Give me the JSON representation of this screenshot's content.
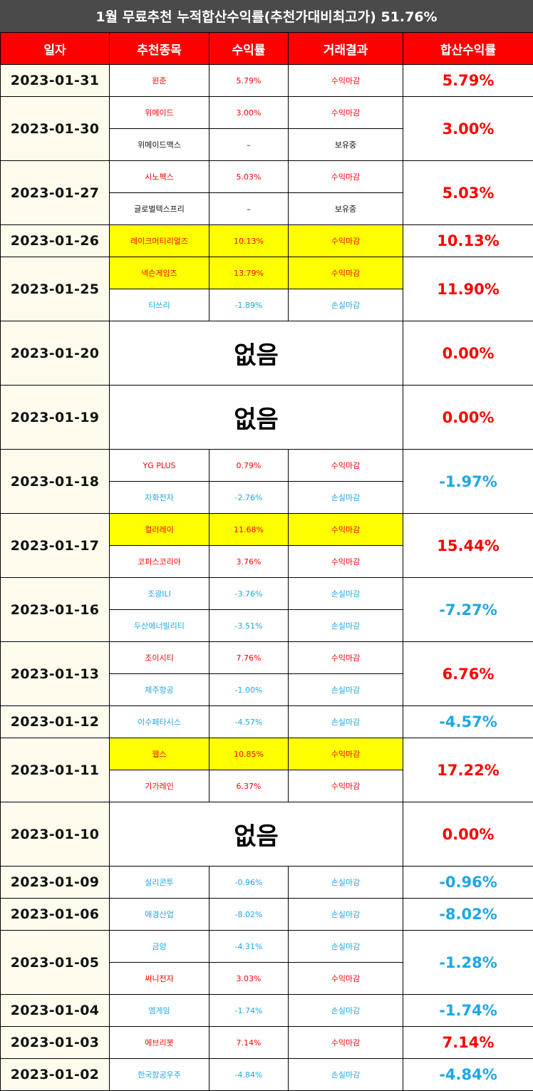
{
  "title": "1월 무료추천 누적합산수익률(추천가대비최고가) 51.76%",
  "headers": [
    "일자",
    "추천종목",
    "수익률",
    "거래결과",
    "합산수익률"
  ],
  "none_label": "없음",
  "colors": {
    "profit": "#ff0000",
    "loss": "#1ca7e6",
    "hold": "#111111",
    "highlight": "#ffff00",
    "header": "#ff0000",
    "title_bar": "#4a4a4a"
  },
  "rows": [
    {
      "date": "2023-01-31",
      "total": "5.79%",
      "total_color": "red",
      "items": [
        {
          "name": "윈준",
          "pct": "5.79%",
          "result": "수익마감",
          "color": "red",
          "hl": false
        }
      ]
    },
    {
      "date": "2023-01-30",
      "total": "3.00%",
      "total_color": "red",
      "items": [
        {
          "name": "위메이드",
          "pct": "3.00%",
          "result": "수익마감",
          "color": "red",
          "hl": false
        },
        {
          "name": "위메이드맥스",
          "pct": "–",
          "result": "보유중",
          "color": "black",
          "hl": false
        }
      ]
    },
    {
      "date": "2023-01-27",
      "total": "5.03%",
      "total_color": "red",
      "items": [
        {
          "name": "시노펙스",
          "pct": "5.03%",
          "result": "수익마감",
          "color": "red",
          "hl": false
        },
        {
          "name": "글로벌텍스프리",
          "pct": "–",
          "result": "보유중",
          "color": "black",
          "hl": false
        }
      ]
    },
    {
      "date": "2023-01-26",
      "total": "10.13%",
      "total_color": "red",
      "items": [
        {
          "name": "레이크머티리얼즈",
          "pct": "10.13%",
          "result": "수익마감",
          "color": "red",
          "hl": true
        }
      ]
    },
    {
      "date": "2023-01-25",
      "total": "11.90%",
      "total_color": "red",
      "items": [
        {
          "name": "넥슨게임즈",
          "pct": "13.79%",
          "result": "수익마감",
          "color": "red",
          "hl": true
        },
        {
          "name": "티쓰리",
          "pct": "-1.89%",
          "result": "손실마감",
          "color": "blue",
          "hl": false
        }
      ]
    },
    {
      "date": "2023-01-20",
      "total": "0.00%",
      "total_color": "red",
      "none": true,
      "items": []
    },
    {
      "date": "2023-01-19",
      "total": "0.00%",
      "total_color": "red",
      "none": true,
      "items": []
    },
    {
      "date": "2023-01-18",
      "total": "-1.97%",
      "total_color": "blue",
      "items": [
        {
          "name": "YG PLUS",
          "pct": "0.79%",
          "result": "수익마감",
          "color": "red",
          "hl": false
        },
        {
          "name": "자화전자",
          "pct": "-2.76%",
          "result": "손실마감",
          "color": "blue",
          "hl": false
        }
      ]
    },
    {
      "date": "2023-01-17",
      "total": "15.44%",
      "total_color": "red",
      "items": [
        {
          "name": "컬러레이",
          "pct": "11.68%",
          "result": "수익마감",
          "color": "red",
          "hl": true
        },
        {
          "name": "코퍼스코리아",
          "pct": "3.76%",
          "result": "수익마감",
          "color": "red",
          "hl": false
        }
      ]
    },
    {
      "date": "2023-01-16",
      "total": "-7.27%",
      "total_color": "blue",
      "items": [
        {
          "name": "조광ILI",
          "pct": "-3.76%",
          "result": "손실마감",
          "color": "blue",
          "hl": false
        },
        {
          "name": "두산에너빌리티",
          "pct": "-3.51%",
          "result": "손실마감",
          "color": "blue",
          "hl": false
        }
      ]
    },
    {
      "date": "2023-01-13",
      "total": "6.76%",
      "total_color": "red",
      "items": [
        {
          "name": "조이시티",
          "pct": "7.76%",
          "result": "수익마감",
          "color": "red",
          "hl": false
        },
        {
          "name": "제주항공",
          "pct": "-1.00%",
          "result": "손실마감",
          "color": "blue",
          "hl": false
        }
      ]
    },
    {
      "date": "2023-01-12",
      "total": "-4.57%",
      "total_color": "blue",
      "items": [
        {
          "name": "이수페타시스",
          "pct": "-4.57%",
          "result": "손실마감",
          "color": "blue",
          "hl": false
        }
      ]
    },
    {
      "date": "2023-01-11",
      "total": "17.22%",
      "total_color": "red",
      "items": [
        {
          "name": "웹스",
          "pct": "10.85%",
          "result": "수익마감",
          "color": "red",
          "hl": true
        },
        {
          "name": "기가레인",
          "pct": "6.37%",
          "result": "수익마감",
          "color": "red",
          "hl": false
        }
      ]
    },
    {
      "date": "2023-01-10",
      "total": "0.00%",
      "total_color": "red",
      "none": true,
      "items": []
    },
    {
      "date": "2023-01-09",
      "total": "-0.96%",
      "total_color": "blue",
      "items": [
        {
          "name": "실리콘투",
          "pct": "-0.96%",
          "result": "손실마감",
          "color": "blue",
          "hl": false
        }
      ]
    },
    {
      "date": "2023-01-06",
      "total": "-8.02%",
      "total_color": "blue",
      "items": [
        {
          "name": "애경산업",
          "pct": "-8.02%",
          "result": "손실마감",
          "color": "blue",
          "hl": false
        }
      ]
    },
    {
      "date": "2023-01-05",
      "total": "-1.28%",
      "total_color": "blue",
      "items": [
        {
          "name": "금양",
          "pct": "-4.31%",
          "result": "손실마감",
          "color": "blue",
          "hl": false
        },
        {
          "name": "써니전자",
          "pct": "3.03%",
          "result": "수익마감",
          "color": "red",
          "hl": false
        }
      ]
    },
    {
      "date": "2023-01-04",
      "total": "-1.74%",
      "total_color": "blue",
      "items": [
        {
          "name": "엠게임",
          "pct": "-1.74%",
          "result": "손실마감",
          "color": "blue",
          "hl": false
        }
      ]
    },
    {
      "date": "2023-01-03",
      "total": "7.14%",
      "total_color": "red",
      "items": [
        {
          "name": "에브리봇",
          "pct": "7.14%",
          "result": "수익마감",
          "color": "red",
          "hl": false
        }
      ]
    },
    {
      "date": "2023-01-02",
      "total": "-4.84%",
      "total_color": "blue",
      "items": [
        {
          "name": "한국항공우주",
          "pct": "-4.84%",
          "result": "손실마감",
          "color": "blue",
          "hl": false
        }
      ]
    }
  ]
}
